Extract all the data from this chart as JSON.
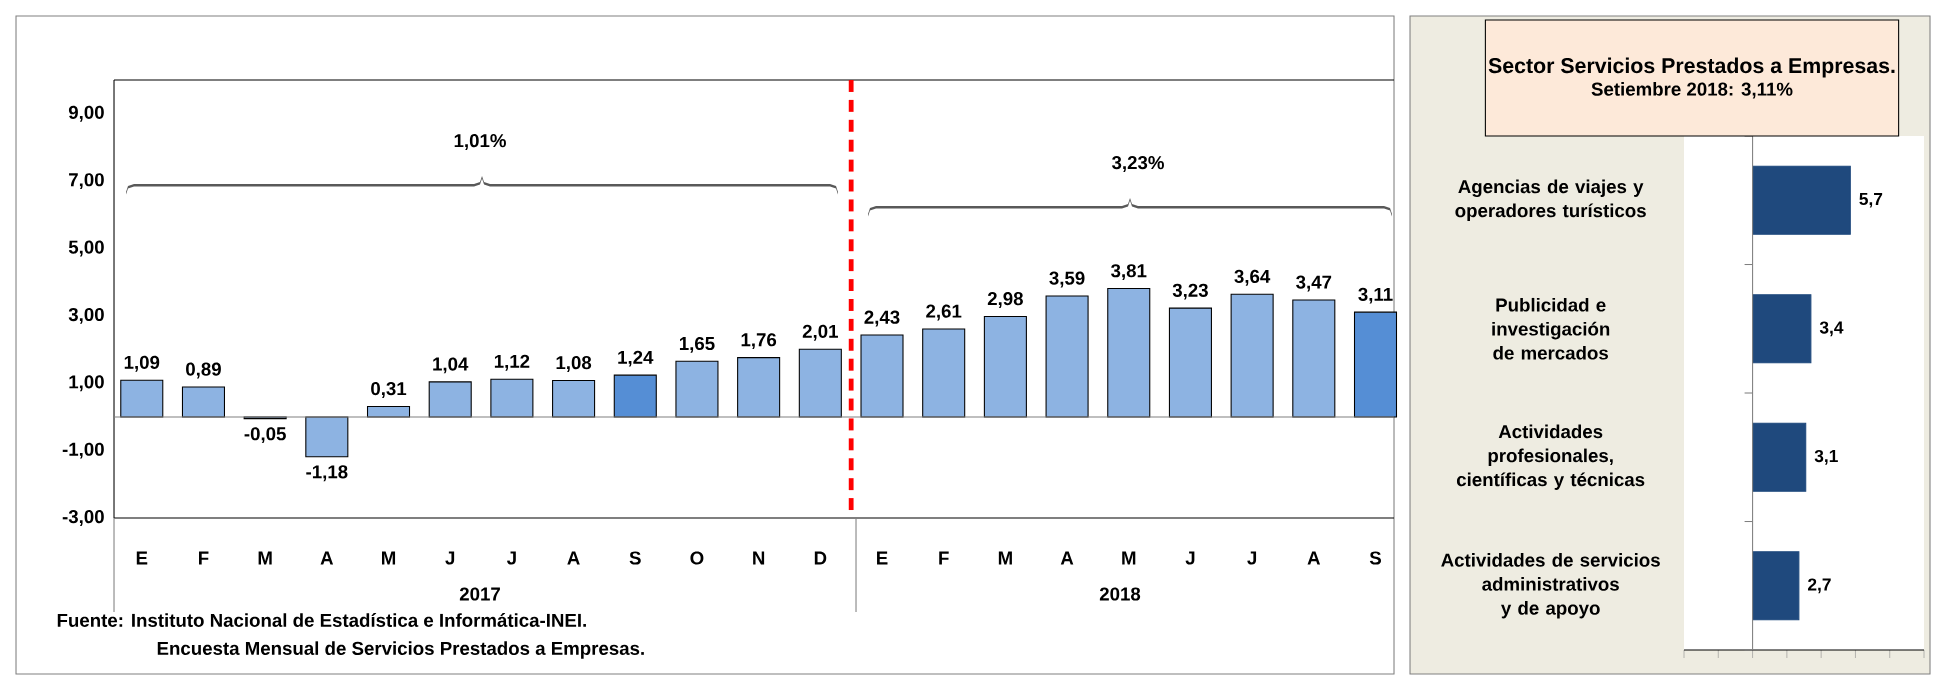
{
  "chart_data": [
    {
      "type": "bar",
      "categories": [
        "E",
        "F",
        "M",
        "A",
        "M",
        "J",
        "J",
        "A",
        "S",
        "O",
        "N",
        "D",
        "E",
        "F",
        "M",
        "A",
        "M",
        "J",
        "J",
        "A",
        "S"
      ],
      "values": [
        1.09,
        0.89,
        -0.05,
        -1.18,
        0.31,
        1.04,
        1.12,
        1.08,
        1.24,
        1.65,
        1.76,
        2.01,
        2.43,
        2.61,
        2.98,
        3.59,
        3.81,
        3.23,
        3.64,
        3.47,
        3.11
      ],
      "colors": [
        "#8db3e2",
        "#8db3e2",
        "#8db3e2",
        "#8db3e2",
        "#8db3e2",
        "#8db3e2",
        "#8db3e2",
        "#8db3e2",
        "#558ed5",
        "#8db3e2",
        "#8db3e2",
        "#8db3e2",
        "#8db3e2",
        "#8db3e2",
        "#8db3e2",
        "#8db3e2",
        "#8db3e2",
        "#8db3e2",
        "#8db3e2",
        "#8db3e2",
        "#558ed5"
      ],
      "value_labels": [
        "1,09",
        "0,89",
        "-0,05",
        "-1,18",
        "0,31",
        "1,04",
        "1,12",
        "1,08",
        "1,24",
        "1,65",
        "1,76",
        "2,01",
        "2,43",
        "2,61",
        "2,98",
        "3,59",
        "3,81",
        "3,23",
        "3,64",
        "3,47",
        "3,11"
      ],
      "ylim": [
        -3,
        10
      ],
      "yticks": [
        {
          "value": -3,
          "label": "-3,00"
        },
        {
          "value": -1,
          "label": "-1,00"
        },
        {
          "value": 1,
          "label": "1,00"
        },
        {
          "value": 3,
          "label": "3,00"
        },
        {
          "value": 5,
          "label": "5,00"
        },
        {
          "value": 7,
          "label": "7,00"
        },
        {
          "value": 9,
          "label": "9,00"
        }
      ],
      "ref_lines": [
        {
          "axis": "y",
          "value": 0,
          "color": "#808080",
          "line_style": "solid"
        }
      ],
      "annotations": [
        "1,01%",
        "3,23%",
        "2017",
        "2018",
        "Fuente:  Instituto Nacional de Estadística e Informática-INEI.",
        "Encuesta Mensual de Servicios Prestados a Empresas."
      ]
    },
    {
      "type": "bar",
      "orientation": "horizontal",
      "title": "Sector Servicios Prestados a Empresas.",
      "subtitle": "Setiembre 2018: 3,11%",
      "categories": [
        "Agencias de viajes y operadores turísticos",
        "Publicidad e investigación de mercados",
        "Actividades profesionales, científicas y técnicas",
        "Actividades de servicios administrativos y de apoyo"
      ],
      "values": [
        5.7,
        3.4,
        3.1,
        2.7
      ],
      "color": "#1f497d",
      "value_labels": [
        "5,7",
        "3,4",
        "3,1",
        "2,7"
      ],
      "xlim": [
        -4,
        10
      ],
      "xticks": [
        {
          "value": -4,
          "label": null
        },
        {
          "value": -2,
          "label": null
        },
        {
          "value": 0,
          "label": null
        },
        {
          "value": 2,
          "label": null
        },
        {
          "value": 4,
          "label": null
        },
        {
          "value": 6,
          "label": null
        },
        {
          "value": 8,
          "label": null
        },
        {
          "value": 10,
          "label": null
        }
      ],
      "tick_labels": "y"
    }
  ]
}
